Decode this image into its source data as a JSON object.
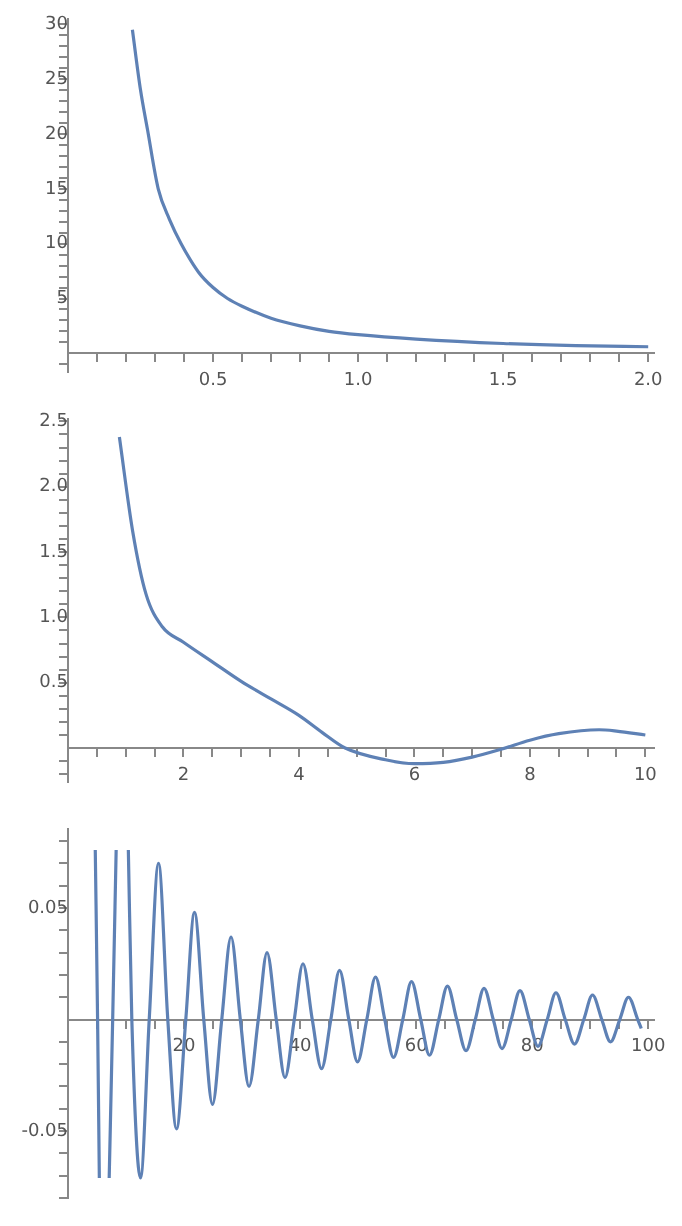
{
  "chart_data": [
    {
      "type": "line",
      "color": "#5e81b5",
      "marker": "none",
      "xlim": [
        0,
        2.02
      ],
      "ylim": [
        -1.7,
        30.5
      ],
      "x": [
        0.222,
        0.25,
        0.274,
        0.311,
        0.35,
        0.39,
        0.45,
        0.5,
        0.55,
        0.6,
        0.7,
        0.8,
        0.9,
        1.0,
        1.2,
        1.5,
        1.75,
        2.0
      ],
      "values": [
        29.5,
        24,
        20.4,
        15,
        12.2,
        10,
        7.4,
        6,
        5,
        4.3,
        3.2,
        2.5,
        2.0,
        1.7,
        1.3,
        0.9,
        0.7,
        0.6
      ],
      "xticks": [
        {
          "value": 0.1,
          "label": null
        },
        {
          "value": 0.2,
          "label": null
        },
        {
          "value": 0.3,
          "label": null
        },
        {
          "value": 0.4,
          "label": null
        },
        0.5,
        {
          "value": 0.6,
          "label": null
        },
        {
          "value": 0.7,
          "label": null
        },
        {
          "value": 0.8,
          "label": null
        },
        {
          "value": 0.9,
          "label": null
        },
        {
          "value": 1,
          "label": "1.0"
        },
        {
          "value": 1.1,
          "label": null
        },
        {
          "value": 1.2,
          "label": null
        },
        {
          "value": 1.3,
          "label": null
        },
        {
          "value": 1.4,
          "label": null
        },
        1.5,
        {
          "value": 1.6,
          "label": null
        },
        {
          "value": 1.7,
          "label": null
        },
        {
          "value": 1.8,
          "label": null
        },
        {
          "value": 1.9,
          "label": null
        },
        {
          "value": 2,
          "label": "2.0"
        }
      ],
      "yticks": [
        {
          "value": -1,
          "label": null
        },
        {
          "value": 1,
          "label": null
        },
        {
          "value": 2,
          "label": null
        },
        {
          "value": 3,
          "label": null
        },
        {
          "value": 4,
          "label": null
        },
        5,
        {
          "value": 6,
          "label": null
        },
        {
          "value": 7,
          "label": null
        },
        {
          "value": 8,
          "label": null
        },
        {
          "value": 9,
          "label": null
        },
        10,
        {
          "value": 11,
          "label": null
        },
        {
          "value": 12,
          "label": null
        },
        {
          "value": 13,
          "label": null
        },
        {
          "value": 14,
          "label": null
        },
        15,
        {
          "value": 16,
          "label": null
        },
        {
          "value": 17,
          "label": null
        },
        {
          "value": 18,
          "label": null
        },
        {
          "value": 19,
          "label": null
        },
        20,
        {
          "value": 21,
          "label": null
        },
        {
          "value": 22,
          "label": null
        },
        {
          "value": 23,
          "label": null
        },
        {
          "value": 24,
          "label": null
        },
        25,
        {
          "value": 26,
          "label": null
        },
        {
          "value": 27,
          "label": null
        },
        {
          "value": 28,
          "label": null
        },
        {
          "value": 29,
          "label": null
        },
        30
      ]
    },
    {
      "type": "line",
      "color": "#5e81b5",
      "marker": "none",
      "xlim": [
        0,
        10.15
      ],
      "ylim": [
        -0.26,
        2.52
      ],
      "x": [
        0.89,
        1.12,
        1.35,
        1.63,
        2.0,
        2.5,
        3.0,
        3.5,
        4.0,
        4.4,
        4.8,
        5.5,
        6.0,
        6.5,
        7.0,
        7.5,
        8.0,
        8.5,
        9.2,
        9.5,
        10.0
      ],
      "values": [
        2.38,
        1.66,
        1.18,
        0.93,
        0.81,
        0.66,
        0.51,
        0.38,
        0.25,
        0.12,
        0,
        -0.09,
        -0.12,
        -0.11,
        -0.07,
        -0.01,
        0.06,
        0.11,
        0.14,
        0.13,
        0.1
      ],
      "xticks": [
        {
          "value": 0.5,
          "label": null
        },
        {
          "value": 1,
          "label": null
        },
        {
          "value": 1.5,
          "label": null
        },
        2,
        {
          "value": 2.5,
          "label": null
        },
        {
          "value": 3,
          "label": null
        },
        {
          "value": 3.5,
          "label": null
        },
        4,
        {
          "value": 4.5,
          "label": null
        },
        {
          "value": 5,
          "label": null
        },
        {
          "value": 5.5,
          "label": null
        },
        6,
        {
          "value": 6.5,
          "label": null
        },
        {
          "value": 7,
          "label": null
        },
        {
          "value": 7.5,
          "label": null
        },
        8,
        {
          "value": 8.5,
          "label": null
        },
        {
          "value": 9,
          "label": null
        },
        {
          "value": 9.5,
          "label": null
        },
        10
      ],
      "yticks": [
        {
          "value": -0.2,
          "label": null
        },
        {
          "value": -0.1,
          "label": null
        },
        {
          "value": 0.1,
          "label": null
        },
        {
          "value": 0.2,
          "label": null
        },
        {
          "value": 0.3,
          "label": null
        },
        {
          "value": 0.4,
          "label": null
        },
        0.5,
        {
          "value": 0.6,
          "label": null
        },
        {
          "value": 0.7,
          "label": null
        },
        {
          "value": 0.8,
          "label": null
        },
        {
          "value": 0.9,
          "label": null
        },
        {
          "value": 1,
          "label": "1.0"
        },
        {
          "value": 1.1,
          "label": null
        },
        {
          "value": 1.2,
          "label": null
        },
        {
          "value": 1.3,
          "label": null
        },
        {
          "value": 1.4,
          "label": null
        },
        1.5,
        {
          "value": 1.6,
          "label": null
        },
        {
          "value": 1.7,
          "label": null
        },
        {
          "value": 1.8,
          "label": null
        },
        {
          "value": 1.9,
          "label": null
        },
        {
          "value": 2,
          "label": "2.0"
        },
        {
          "value": 2.1,
          "label": null
        },
        {
          "value": 2.2,
          "label": null
        },
        {
          "value": 2.3,
          "label": null
        },
        {
          "value": 2.4,
          "label": null
        },
        2.5
      ]
    },
    {
      "type": "line",
      "color": "#5e81b5",
      "marker": "none",
      "xlim": [
        0,
        101
      ],
      "ylim": [
        -0.08,
        0.0855
      ],
      "x": [
        4.7,
        5.1,
        5.4,
        6.2,
        7.1,
        7.7,
        8.3,
        9.4,
        10.4,
        11.0,
        12.5,
        14.0,
        15.6,
        17.2,
        18.7,
        20.3,
        21.8,
        23.4,
        24.9,
        26.5,
        28.1,
        29.7,
        31.2,
        32.8,
        34.3,
        35.9,
        37.4,
        39.0,
        40.5,
        42.1,
        43.7,
        45.3,
        46.8,
        48.4,
        49.9,
        51.5,
        53.0,
        54.6,
        56.1,
        57.7,
        59.2,
        60.8,
        62.3,
        63.9,
        65.4,
        67.0,
        68.6,
        70.2,
        71.7,
        73.3,
        74.8,
        76.4,
        77.9,
        79.5,
        81.0,
        82.6,
        84.1,
        85.7,
        87.3,
        88.9,
        90.4,
        92.0,
        93.5,
        95.1,
        96.6,
        98.2,
        98.8
      ],
      "values": [
        0.076,
        0,
        -0.071,
        null,
        -0.071,
        0,
        0.076,
        null,
        0.076,
        0,
        -0.071,
        0,
        0.07,
        0,
        -0.049,
        0,
        0.048,
        0,
        -0.038,
        0,
        0.037,
        0,
        -0.03,
        0,
        0.03,
        0,
        -0.026,
        0,
        0.025,
        0,
        -0.022,
        0,
        0.022,
        0,
        -0.019,
        0,
        0.019,
        0,
        -0.017,
        0,
        0.017,
        0,
        -0.016,
        0,
        0.015,
        0,
        -0.014,
        0,
        0.014,
        0,
        -0.013,
        0,
        0.013,
        0,
        -0.012,
        0,
        0.012,
        0,
        -0.011,
        0,
        0.011,
        0,
        -0.01,
        0,
        0.01,
        0,
        -0.004
      ],
      "xticks": [
        {
          "value": 5,
          "label": null
        },
        {
          "value": 10,
          "label": null
        },
        {
          "value": 15,
          "label": null
        },
        20,
        {
          "value": 25,
          "label": null
        },
        {
          "value": 30,
          "label": null
        },
        {
          "value": 35,
          "label": null
        },
        40,
        {
          "value": 45,
          "label": null
        },
        {
          "value": 50,
          "label": null
        },
        {
          "value": 55,
          "label": null
        },
        60,
        {
          "value": 65,
          "label": null
        },
        {
          "value": 70,
          "label": null
        },
        {
          "value": 75,
          "label": null
        },
        80,
        {
          "value": 85,
          "label": null
        },
        {
          "value": 90,
          "label": null
        },
        {
          "value": 95,
          "label": null
        },
        100
      ],
      "yticks": [
        {
          "value": -0.08,
          "label": null
        },
        {
          "value": -0.07,
          "label": null
        },
        {
          "value": -0.06,
          "label": null
        },
        -0.05,
        {
          "value": -0.04,
          "label": null
        },
        {
          "value": -0.03,
          "label": null
        },
        {
          "value": -0.02,
          "label": null
        },
        {
          "value": -0.01,
          "label": null
        },
        {
          "value": 0.01,
          "label": null
        },
        {
          "value": 0.02,
          "label": null
        },
        {
          "value": 0.03,
          "label": null
        },
        {
          "value": 0.04,
          "label": null
        },
        0.05,
        {
          "value": 0.06,
          "label": null
        },
        {
          "value": 0.07,
          "label": null
        },
        {
          "value": 0.08,
          "label": null
        }
      ]
    }
  ]
}
